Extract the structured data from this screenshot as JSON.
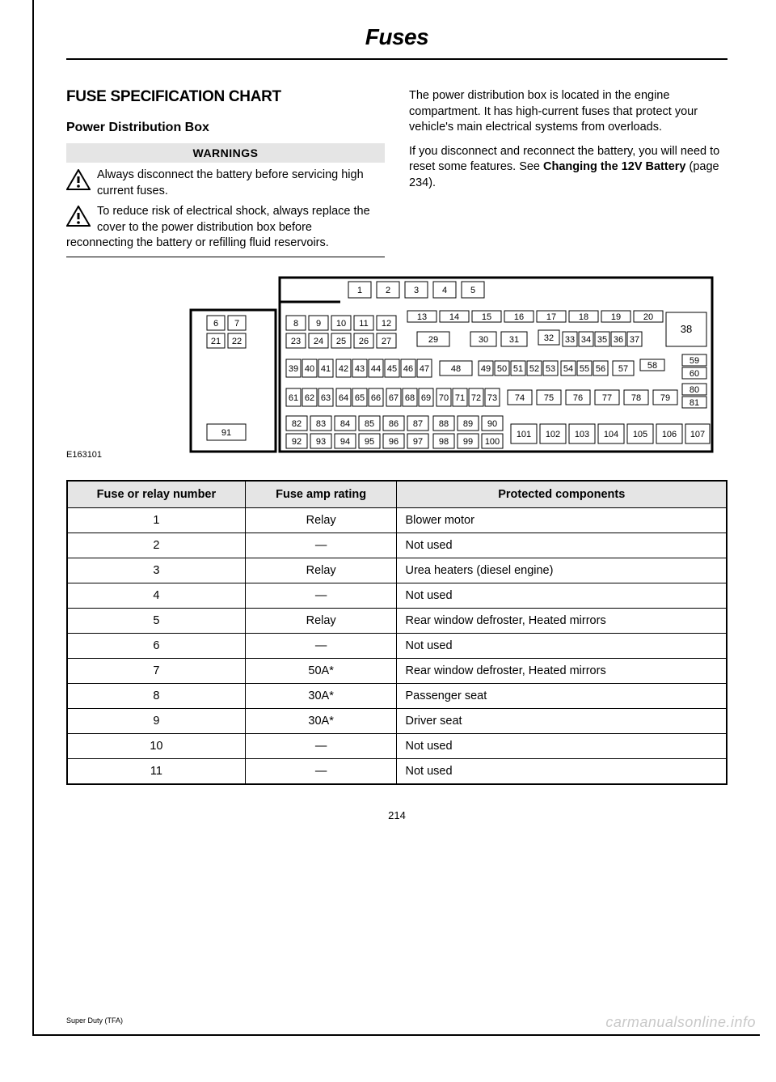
{
  "chapter_title": "Fuses",
  "section_title": "FUSE SPECIFICATION CHART",
  "subsection_title": "Power Distribution Box",
  "warnings_header": "WARNINGS",
  "warnings": [
    "Always disconnect the battery before servicing high current fuses.",
    "To reduce risk of electrical shock, always replace the cover to the power distribution box before"
  ],
  "warning_continuation": "reconnecting the battery or refilling fluid reservoirs.",
  "right_para_1": "The power distribution box is located in the engine compartment. It has high-current fuses that protect your vehicle's main electrical systems from overloads.",
  "right_para_2_a": "If you disconnect and reconnect the battery, you will need to reset some features.  See ",
  "right_para_2_bold": "Changing the 12V Battery",
  "right_para_2_b": " (page 234).",
  "diagram_id": "E163101",
  "table": {
    "headers": [
      "Fuse or relay number",
      "Fuse amp rating",
      "Protected components"
    ],
    "rows": [
      [
        "1",
        "Relay",
        "Blower motor"
      ],
      [
        "2",
        "—",
        "Not used"
      ],
      [
        "3",
        "Relay",
        "Urea heaters (diesel engine)"
      ],
      [
        "4",
        "—",
        "Not used"
      ],
      [
        "5",
        "Relay",
        "Rear window defroster, Heated mirrors"
      ],
      [
        "6",
        "—",
        "Not used"
      ],
      [
        "7",
        "50A*",
        "Rear window defroster, Heated mirrors"
      ],
      [
        "8",
        "30A*",
        "Passenger seat"
      ],
      [
        "9",
        "30A*",
        "Driver seat"
      ],
      [
        "10",
        "—",
        "Not used"
      ],
      [
        "11",
        "—",
        "Not used"
      ]
    ]
  },
  "page_number": "214",
  "footer_model": "Super Duty (TFA)",
  "watermark": "carmanualsonline.info",
  "colors": {
    "bg": "#ffffff",
    "text": "#000000",
    "header_bg": "#e5e5e5",
    "watermark": "#c9c9c9"
  }
}
